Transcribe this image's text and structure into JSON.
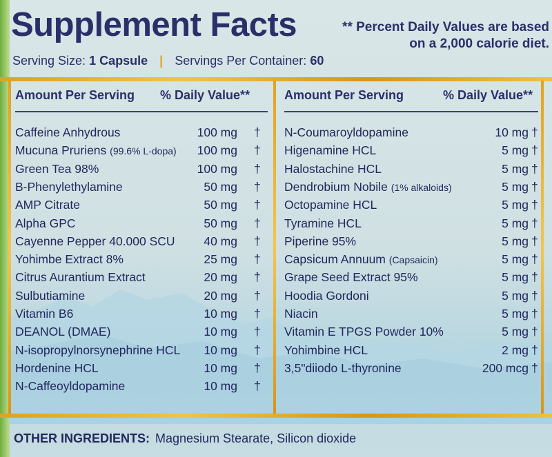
{
  "title": "Supplement Facts",
  "note_line1": "** Percent Daily Values are based",
  "note_line2": "on a 2,000 calorie diet.",
  "serving_size_label": "Serving Size:",
  "serving_size_value": "1 Capsule",
  "servings_label": "Servings Per Container:",
  "servings_value": "60",
  "header_amount": "Amount Per Serving",
  "header_dv": "% Daily Value**",
  "left_rows": [
    {
      "name": "Caffeine Anhydrous",
      "qual": "",
      "amount": "100 mg",
      "dv": "†"
    },
    {
      "name": "Mucuna Pruriens",
      "qual": "(99.6% L-dopa)",
      "amount": "100 mg",
      "dv": "†"
    },
    {
      "name": "Green Tea 98%",
      "qual": "",
      "amount": "100 mg",
      "dv": "†"
    },
    {
      "name": "B-Phenylethylamine",
      "qual": "",
      "amount": "50 mg",
      "dv": "†"
    },
    {
      "name": "AMP Citrate",
      "qual": "",
      "amount": "50 mg",
      "dv": "†"
    },
    {
      "name": "Alpha GPC",
      "qual": "",
      "amount": "50 mg",
      "dv": "†"
    },
    {
      "name": "Cayenne Pepper 40.000 SCU",
      "qual": "",
      "amount": "40 mg",
      "dv": "†"
    },
    {
      "name": "Yohimbe Extract 8%",
      "qual": "",
      "amount": "25 mg",
      "dv": "†"
    },
    {
      "name": "Citrus Aurantium Extract",
      "qual": "",
      "amount": "20 mg",
      "dv": "†"
    },
    {
      "name": "Sulbutiamine",
      "qual": "",
      "amount": "20 mg",
      "dv": "†"
    },
    {
      "name": "Vitamin B6",
      "qual": "",
      "amount": "10 mg",
      "dv": "†"
    },
    {
      "name": "DEANOL (DMAE)",
      "qual": "",
      "amount": "10 mg",
      "dv": "†"
    },
    {
      "name": "N-isopropylnorsynephrine HCL",
      "qual": "",
      "amount": "10 mg",
      "dv": "†"
    },
    {
      "name": "Hordenine HCL",
      "qual": "",
      "amount": "10 mg",
      "dv": "†"
    },
    {
      "name": "N-Caffeoyldopamine",
      "qual": "",
      "amount": "10 mg",
      "dv": "†"
    }
  ],
  "right_rows": [
    {
      "name": "N-Coumaroyldopamine",
      "qual": "",
      "amount": "10 mg",
      "dv": "†"
    },
    {
      "name": "Higenamine HCL",
      "qual": "",
      "amount": "5 mg",
      "dv": "†"
    },
    {
      "name": "Halostachine HCL",
      "qual": "",
      "amount": "5 mg",
      "dv": "†"
    },
    {
      "name": "Dendrobium Nobile",
      "qual": "(1% alkaloids)",
      "amount": "5 mg",
      "dv": "†"
    },
    {
      "name": "Octopamine HCL",
      "qual": "",
      "amount": "5 mg",
      "dv": "†"
    },
    {
      "name": "Tyramine HCL",
      "qual": "",
      "amount": "5 mg",
      "dv": "†"
    },
    {
      "name": "Piperine 95%",
      "qual": "",
      "amount": "5 mg",
      "dv": "†"
    },
    {
      "name": "Capsicum Annuum",
      "qual": "(Capsaicin)",
      "amount": "5 mg",
      "dv": "†"
    },
    {
      "name": "Grape Seed Extract 95%",
      "qual": "",
      "amount": "5 mg",
      "dv": "†"
    },
    {
      "name": "Hoodia Gordoni",
      "qual": "",
      "amount": "5 mg",
      "dv": "†"
    },
    {
      "name": "Niacin",
      "qual": "",
      "amount": "5 mg",
      "dv": "†"
    },
    {
      "name": "Vitamin E TPGS Powder 10%",
      "qual": "",
      "amount": "5 mg",
      "dv": "†"
    },
    {
      "name": "Yohimbine HCL",
      "qual": "",
      "amount": "2 mg",
      "dv": "†"
    },
    {
      "name": "3,5\"diiodo L-thyronine",
      "qual": "",
      "amount": "200 mcg",
      "dv": "†"
    }
  ],
  "other_label": "OTHER INGREDIENTS:",
  "other_value": "Magnesium Stearate, Silicon dioxide",
  "colors": {
    "ink": "#23285e",
    "gold": "#e0a21f",
    "green_edge": "#6fae3f",
    "label_bg": "#d7e5e6",
    "mountain": "#aacfe0"
  }
}
